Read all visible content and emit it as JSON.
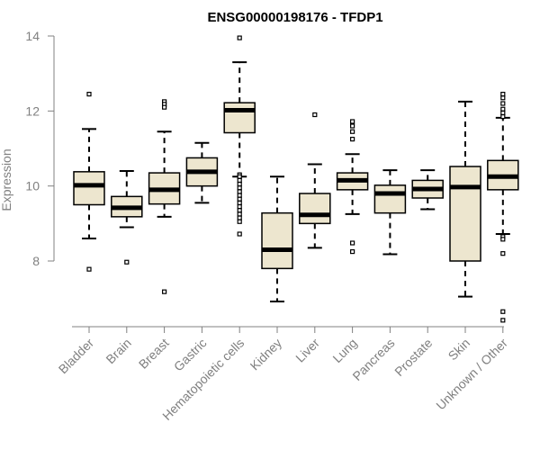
{
  "chart_data": {
    "type": "boxplot",
    "title": "ENSG00000198176 - TFDP1",
    "xlabel": "",
    "ylabel": "Expression",
    "ylim": [
      6.2,
      14.2
    ],
    "yticks": [
      8,
      10,
      12,
      14
    ],
    "box_fill": "#ede6cf",
    "categories": [
      "Bladder",
      "Brain",
      "Breast",
      "Gastric",
      "Hematopoietic cells",
      "Kidney",
      "Liver",
      "Lung",
      "Pancreas",
      "Prostate",
      "Skin",
      "Unknown / Other"
    ],
    "boxes": [
      {
        "category": "Bladder",
        "whisker_low": 8.6,
        "q1": 9.5,
        "median": 10.02,
        "q3": 10.38,
        "whisker_high": 11.52,
        "outliers": [
          12.45,
          7.78
        ]
      },
      {
        "category": "Brain",
        "whisker_low": 8.9,
        "q1": 9.18,
        "median": 9.42,
        "q3": 9.72,
        "whisker_high": 10.4,
        "outliers": [
          7.97
        ]
      },
      {
        "category": "Breast",
        "whisker_low": 9.18,
        "q1": 9.52,
        "median": 9.9,
        "q3": 10.35,
        "whisker_high": 11.45,
        "outliers": [
          12.25,
          12.18,
          12.1,
          7.18
        ]
      },
      {
        "category": "Gastric",
        "whisker_low": 9.55,
        "q1": 10.0,
        "median": 10.38,
        "q3": 10.75,
        "whisker_high": 11.15,
        "outliers": []
      },
      {
        "category": "Hematopoietic cells",
        "whisker_low": 10.25,
        "q1": 11.42,
        "median": 12.02,
        "q3": 12.22,
        "whisker_high": 13.3,
        "outliers": [
          13.95,
          10.3,
          10.25,
          10.15,
          10.05,
          9.95,
          9.85,
          9.75,
          9.65,
          9.55,
          9.45,
          9.35,
          9.25,
          9.15,
          9.05,
          8.72
        ]
      },
      {
        "category": "Kidney",
        "whisker_low": 6.92,
        "q1": 7.8,
        "median": 8.3,
        "q3": 9.28,
        "whisker_high": 10.25,
        "outliers": []
      },
      {
        "category": "Liver",
        "whisker_low": 8.35,
        "q1": 9.0,
        "median": 9.23,
        "q3": 9.8,
        "whisker_high": 10.58,
        "outliers": [
          11.9
        ]
      },
      {
        "category": "Lung",
        "whisker_low": 9.25,
        "q1": 9.9,
        "median": 10.15,
        "q3": 10.35,
        "whisker_high": 10.85,
        "outliers": [
          11.72,
          11.6,
          11.45,
          11.25,
          8.48,
          8.25
        ]
      },
      {
        "category": "Pancreas",
        "whisker_low": 8.18,
        "q1": 9.28,
        "median": 9.8,
        "q3": 10.02,
        "whisker_high": 10.42,
        "outliers": []
      },
      {
        "category": "Prostate",
        "whisker_low": 9.38,
        "q1": 9.68,
        "median": 9.92,
        "q3": 10.15,
        "whisker_high": 10.42,
        "outliers": []
      },
      {
        "category": "Skin",
        "whisker_low": 7.05,
        "q1": 8.0,
        "median": 9.97,
        "q3": 10.52,
        "whisker_high": 12.25,
        "outliers": []
      },
      {
        "category": "Unknown / Other",
        "whisker_low": 8.72,
        "q1": 9.9,
        "median": 10.25,
        "q3": 10.68,
        "whisker_high": 11.82,
        "outliers": [
          12.45,
          12.35,
          12.2,
          12.05,
          11.95,
          11.85,
          8.65,
          8.58,
          8.2,
          6.65,
          6.42
        ]
      }
    ]
  }
}
